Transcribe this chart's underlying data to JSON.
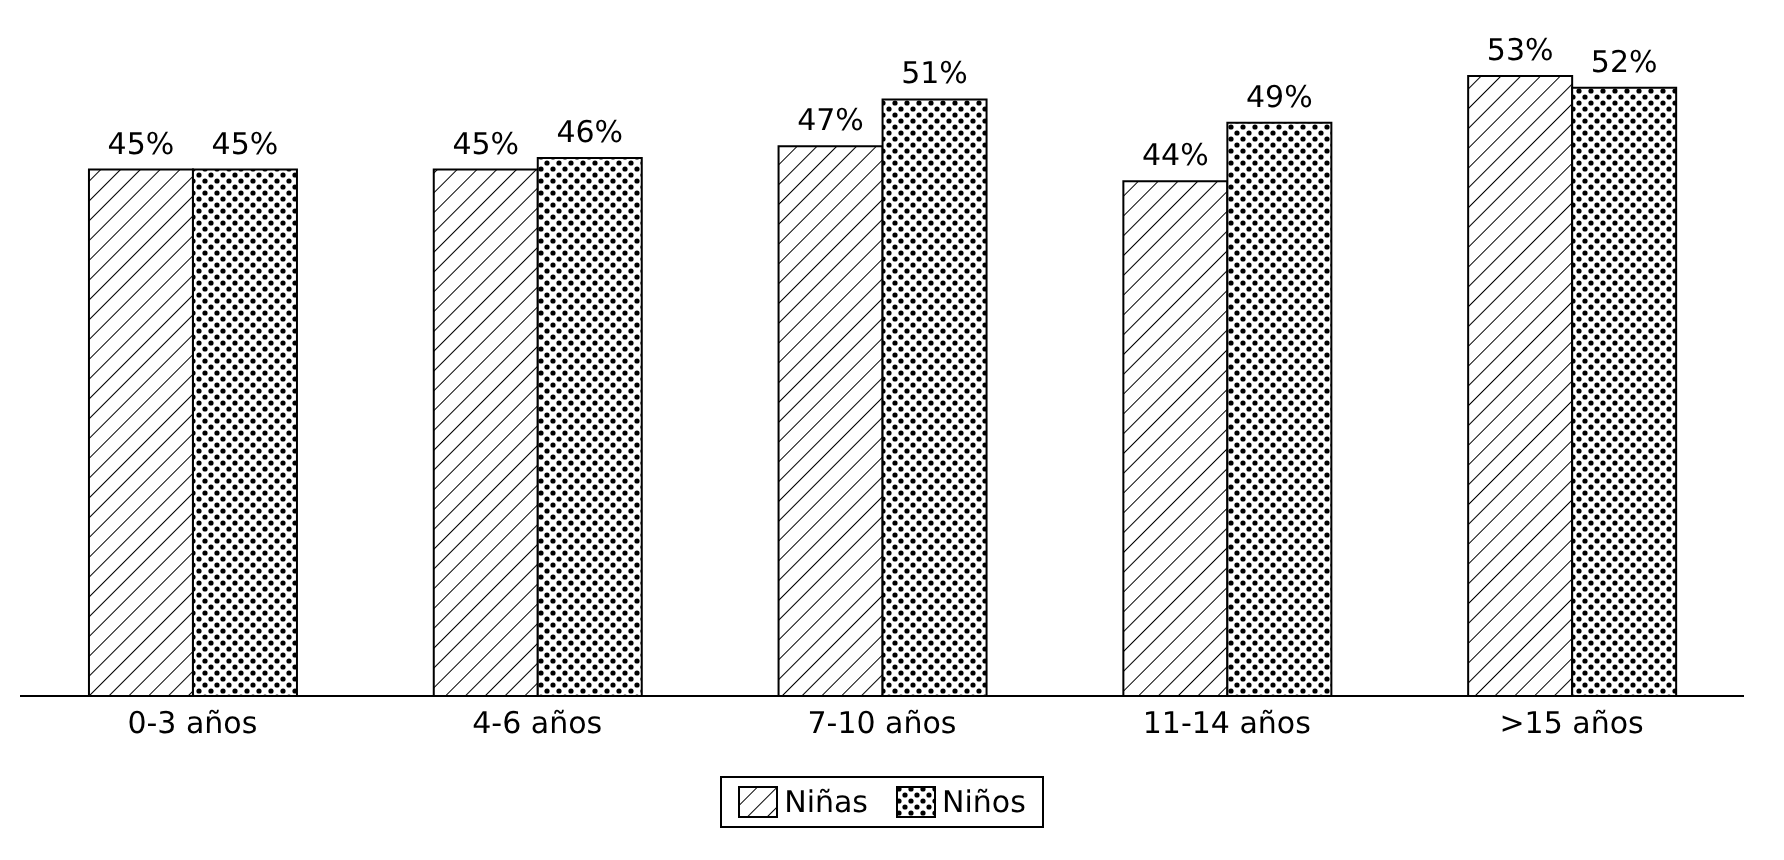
{
  "chart_data": {
    "type": "bar",
    "categories": [
      "0-3 años",
      "4-6 años",
      "7-10 años",
      "11-14 años",
      ">15  años"
    ],
    "series": [
      {
        "name": "Niñas",
        "color": "#000000",
        "values": [
          45,
          45,
          47,
          44,
          53
        ],
        "value_labels": [
          "45%",
          "45%",
          "47%",
          "44%",
          "53%"
        ]
      },
      {
        "name": "Niños",
        "color": "#000000",
        "values": [
          45,
          46,
          51,
          49,
          52
        ],
        "value_labels": [
          "45%",
          "46%",
          "51%",
          "49%",
          "52%"
        ]
      }
    ],
    "legend": "bottom",
    "tick_labels": "x"
  }
}
